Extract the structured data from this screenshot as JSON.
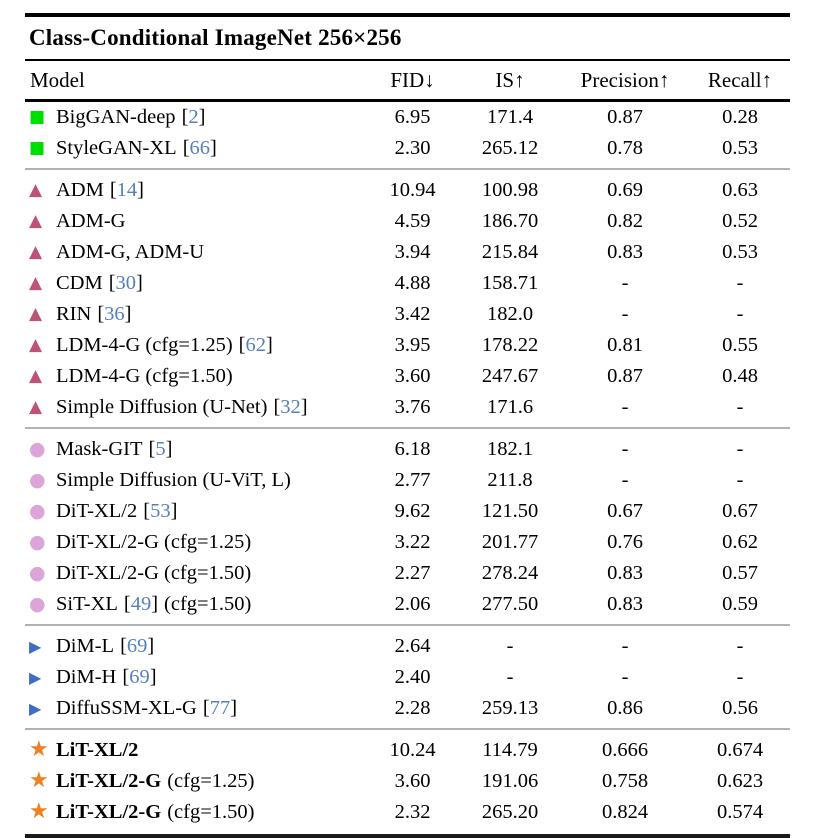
{
  "title": "Class-Conditional ImageNet 256×256",
  "columns": [
    "Model",
    "FID↓",
    "IS↑",
    "Precision↑",
    "Recall↑"
  ],
  "citation_color": "#567fbe",
  "groups": [
    {
      "marker": {
        "name": "green-square-icon",
        "shape": "square",
        "glyph": "■",
        "color": "#00dd00"
      },
      "rows": [
        {
          "model": "BigGAN-deep",
          "cite": "2",
          "fid": "6.95",
          "is": "171.4",
          "precision": "0.87",
          "recall": "0.28"
        },
        {
          "model": "StyleGAN-XL",
          "cite": "66",
          "fid": "2.30",
          "is": "265.12",
          "precision": "0.78",
          "recall": "0.53"
        }
      ]
    },
    {
      "marker": {
        "name": "maroon-triangle-icon",
        "shape": "triangle-up",
        "glyph": "▲",
        "color": "#bd5477"
      },
      "rows": [
        {
          "model": "ADM",
          "cite": "14",
          "fid": "10.94",
          "is": "100.98",
          "precision": "0.69",
          "recall": "0.63"
        },
        {
          "model": "ADM-G",
          "fid": "4.59",
          "is": "186.70",
          "precision": "0.82",
          "recall": "0.52"
        },
        {
          "model": "ADM-G, ADM-U",
          "fid": "3.94",
          "is": "215.84",
          "precision": "0.83",
          "recall": "0.53"
        },
        {
          "model": "CDM",
          "cite": "30",
          "fid": "4.88",
          "is": "158.71",
          "precision": "-",
          "recall": "-"
        },
        {
          "model": "RIN",
          "cite": "36",
          "fid": "3.42",
          "is": "182.0",
          "precision": "-",
          "recall": "-"
        },
        {
          "model": "LDM-4-G (cfg=1.25)",
          "cite": "62",
          "fid": "3.95",
          "is": "178.22",
          "precision": "0.81",
          "recall": "0.55"
        },
        {
          "model": "LDM-4-G (cfg=1.50)",
          "fid": "3.60",
          "is": "247.67",
          "precision": "0.87",
          "recall": "0.48"
        },
        {
          "model": "Simple Diffusion (U-Net)",
          "cite": "32",
          "fid": "3.76",
          "is": "171.6",
          "precision": "-",
          "recall": "-"
        }
      ]
    },
    {
      "marker": {
        "name": "plum-circle-icon",
        "shape": "circle",
        "glyph": "●",
        "color": "#dda4d8"
      },
      "rows": [
        {
          "model": "Mask-GIT",
          "cite": "5",
          "fid": "6.18",
          "is": "182.1",
          "precision": "-",
          "recall": "-"
        },
        {
          "model": "Simple Diffusion (U-ViT, L)",
          "fid": "2.77",
          "is": "211.8",
          "precision": "-",
          "recall": "-"
        },
        {
          "model": "DiT-XL/2",
          "cite": "53",
          "fid": "9.62",
          "is": "121.50",
          "precision": "0.67",
          "recall": "0.67"
        },
        {
          "model": "DiT-XL/2-G (cfg=1.25)",
          "fid": "3.22",
          "is": "201.77",
          "precision": "0.76",
          "recall": "0.62"
        },
        {
          "model": "DiT-XL/2-G (cfg=1.50)",
          "fid": "2.27",
          "is": "278.24",
          "precision": "0.83",
          "recall": "0.57"
        },
        {
          "model": "SiT-XL",
          "cite": "49",
          "suffix": "(cfg=1.50)",
          "fid": "2.06",
          "is": "277.50",
          "precision": "0.83",
          "recall": "0.59"
        }
      ]
    },
    {
      "marker": {
        "name": "blue-triangle-right-icon",
        "shape": "triangle-right",
        "glyph": "▶",
        "color": "#3e6dc5"
      },
      "rows": [
        {
          "model": "DiM-L",
          "cite": "69",
          "fid": "2.64",
          "is": "-",
          "precision": "-",
          "recall": "-"
        },
        {
          "model": "DiM-H",
          "cite": "69",
          "fid": "2.40",
          "is": "-",
          "precision": "-",
          "recall": "-"
        },
        {
          "model": "DiffuSSM-XL-G",
          "cite": "77",
          "fid": "2.28",
          "is": "259.13",
          "precision": "0.86",
          "recall": "0.56"
        }
      ]
    },
    {
      "marker": {
        "name": "orange-star-icon",
        "shape": "star",
        "glyph": "★",
        "color": "#f08122"
      },
      "rows": [
        {
          "model": "LiT-XL/2",
          "bold": true,
          "fid": "10.24",
          "is": "114.79",
          "precision": "0.666",
          "recall": "0.674"
        },
        {
          "model": "LiT-XL/2-G",
          "bold": true,
          "suffix": "(cfg=1.25)",
          "fid": "3.60",
          "is": "191.06",
          "precision": "0.758",
          "recall": "0.623"
        },
        {
          "model": "LiT-XL/2-G",
          "bold": true,
          "suffix": "(cfg=1.50)",
          "fid": "2.32",
          "is": "265.20",
          "precision": "0.824",
          "recall": "0.574"
        }
      ]
    }
  ]
}
